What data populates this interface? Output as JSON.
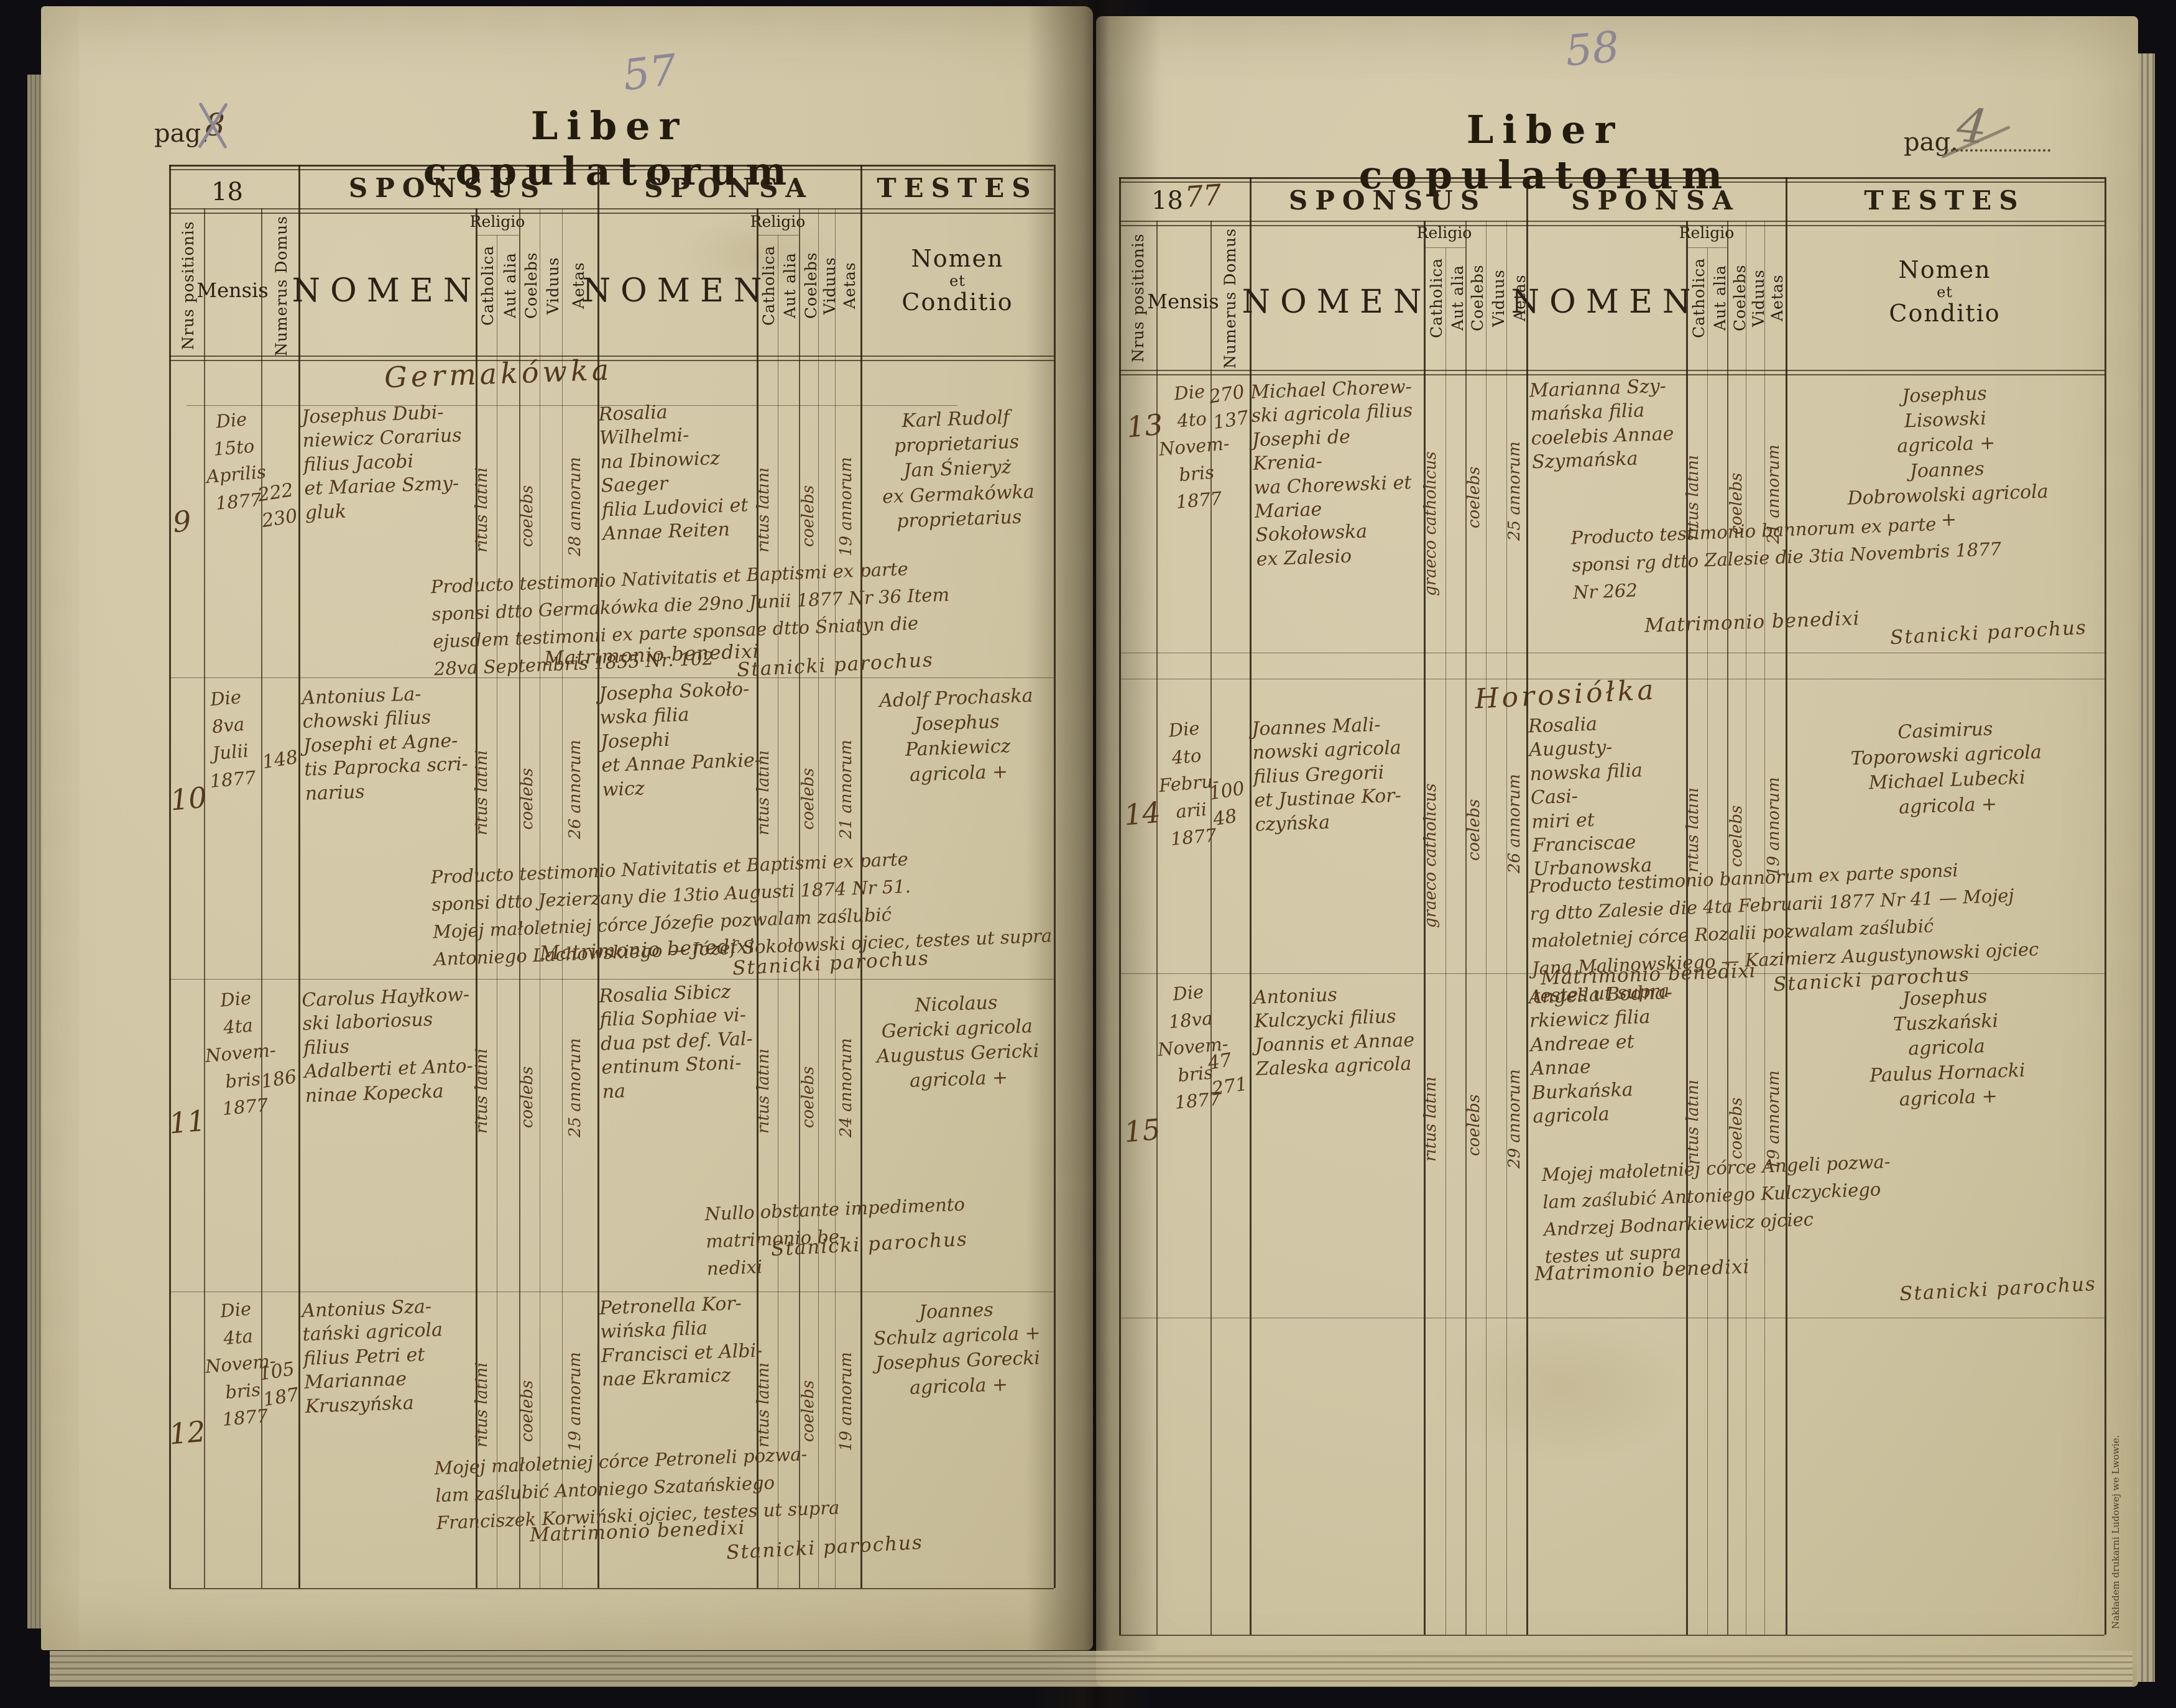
{
  "book": {
    "title": "Liber copulatorum",
    "imprint": "Nakładem drukarni Ludowej we Lwowie."
  },
  "colors": {
    "paper": "#d1c7a6",
    "ink": "#2b2114",
    "handwriting": "#54391d",
    "pencil": "#8d8796",
    "background": "#0d0d12"
  },
  "groups": {
    "sponsus": "SPONSUS",
    "sponsa": "SPONSA",
    "testes": "TESTES"
  },
  "columns": {
    "nrus": "Nrus positionis",
    "mensis": "Mensis",
    "domus": "Numerus Domus",
    "nomen": "NOMEN",
    "religio": "Religio",
    "catholica": "Catholica",
    "aut_alia": "Aut alia",
    "coelebs": "Coelebs",
    "viduus": "Viduus",
    "aetas": "Aetas",
    "testes_line1": "Nomen",
    "testes_line2": "et",
    "testes_line3": "Conditio"
  },
  "left": {
    "pag_label": "pag.",
    "pag_number": "8",
    "pencil_number": "57",
    "year_printed": "18",
    "year_written": "",
    "place_header": "Germakówka",
    "rows": [
      {
        "nr": "9",
        "mensis": "Die\n15to\nAprilis\n1877",
        "domus": "222\n230",
        "sponsus": "Josephus Dubi-\nniewicz Corarius\nfilius Jacobi\net Mariae Szmy-\ngluk",
        "sponsus_ritus": "ritus latini",
        "sponsus_status": "coelebs",
        "sponsus_aetas": "28 annorum",
        "sponsa": "Rosalia Wilhelmi-\nna Ibinowicz Saeger\nfilia Ludovici et\nAnnae Reiten",
        "sponsa_ritus": "ritus latini",
        "sponsa_status": "coelebs",
        "sponsa_aetas": "19 annorum",
        "testes": "Karl Rudolf\nproprietarius\nJan Śnieryż\nex Germakówka\nproprietarius",
        "note": "Producto testimonio Nativitatis et Baptismi ex parte\nsponsi dtto Germakówka die 29no Junii 1877 Nr 36 Item\nejusdem testimonii ex parte sponsae dtto Śniatyn die\n28va Septembris 1855 Nr. 102",
        "benedixi": "Matrimonio benedixi",
        "signature": "Stanicki parochus"
      },
      {
        "nr": "10",
        "mensis": "Die\n8va\nJulii\n1877",
        "domus": "148",
        "sponsus": "Antonius La-\nchowski filius\nJosephi et Agne-\ntis Paprocka scri-\nnarius",
        "sponsus_ritus": "ritus latini",
        "sponsus_status": "coelebs",
        "sponsus_aetas": "26 annorum",
        "sponsa": "Josepha Sokoło-\nwska filia Josephi\net Annae Pankie-\nwicz",
        "sponsa_ritus": "ritus latini",
        "sponsa_status": "coelebs",
        "sponsa_aetas": "21 annorum",
        "testes": "Adolf Prochaska\nJosephus Pankiewicz\nagricola +",
        "note": "Producto testimonio Nativitatis et Baptismi ex parte\nsponsi dtto Jezierzany die 13tio Augusti 1874 Nr 51.\nMojej małoletniej córce Józefie pozwalam zaślubić\nAntoniego Lachowskiego — Józef Sokołowski ojciec, testes ut supra",
        "benedixi": "Matrimonio benedixi",
        "signature": "Stanicki parochus"
      },
      {
        "nr": "11",
        "mensis": "Die\n4ta\nNovem-\nbris\n1877",
        "domus": "186",
        "sponsus": "Carolus Hayłkow-\nski laboriosus filius\nAdalberti et Anto-\nninae Kopecka",
        "sponsus_ritus": "ritus latini",
        "sponsus_status": "coelebs",
        "sponsus_aetas": "25 annorum",
        "sponsa": "Rosalia Sibicz\nfilia Sophiae vi-\ndua pst def. Val-\nentinum Stoni-\nna",
        "sponsa_ritus": "ritus latini",
        "sponsa_status": "coelebs",
        "sponsa_aetas": "24 annorum",
        "testes": "Nicolaus\nGericki agricola\nAugustus Gericki\nagricola +",
        "note": "Nullo obstante impedimento matrimonio be-\nnedixi",
        "benedixi": "",
        "signature": "Stanicki parochus"
      },
      {
        "nr": "12",
        "mensis": "Die\n4ta\nNovem-\nbris\n1877",
        "domus": "105\n187",
        "sponsus": "Antonius Sza-\ntański agricola\nfilius Petri et\nMariannae\nKruszyńska",
        "sponsus_ritus": "ritus latini",
        "sponsus_status": "coelebs",
        "sponsus_aetas": "19 annorum",
        "sponsa": "Petronella Kor-\nwińska filia\nFrancisci et Albi-\nnae Ekramicz",
        "sponsa_ritus": "ritus latini",
        "sponsa_status": "coelebs",
        "sponsa_aetas": "19 annorum",
        "testes": "Joannes\nSchulz agricola +\nJosephus Gorecki\nagricola +",
        "note": "Mojej małoletniej córce Petroneli pozwa-\nlam zaślubić Antoniego Szatańskiego\nFranciszek Korwiński ojciec, testes ut supra",
        "benedixi": "Matrimonio benedixi",
        "signature": "Stanicki parochus"
      }
    ]
  },
  "right": {
    "pag_label": "pag.",
    "pag_number": "4",
    "pencil_number": "58",
    "year_printed": "18",
    "year_written": "77",
    "place_header": "Horosiółka",
    "rows": [
      {
        "nr": "13",
        "mensis": "Die\n4to\nNovem-\nbris\n1877",
        "domus": "270\n137",
        "sponsus": "Michael Chorew-\nski agricola filius\nJosephi de Krenia-\nwa Chorewski et\nMariae Sokołowska\nex Zalesio",
        "sponsus_ritus": "graeco catholicus",
        "sponsus_status": "coelebs",
        "sponsus_aetas": "25 annorum",
        "sponsa": "Marianna Szy-\nmańska filia\ncoelebis Annae\nSzymańska",
        "sponsa_ritus": "ritus latini",
        "sponsa_status": "coelebs",
        "sponsa_aetas": "21 annorum",
        "testes": "Josephus\nLisowski\nagricola +\nJoannes\nDobrowolski agricola\n+",
        "note": "Producto testimonio bannorum ex parte\nsponsi rg dtto Zalesie die 3tia Novembris 1877\nNr 262",
        "benedixi": "Matrimonio benedixi",
        "signature": "Stanicki parochus"
      },
      {
        "nr": "14",
        "mensis": "Die\n4to\nFebru-\narii\n1877",
        "domus": "100\n48",
        "sponsus": "Joannes Mali-\nnowski agricola\nfilius Gregorii\net Justinae Kor-\nczyńska",
        "sponsus_ritus": "graeco catholicus",
        "sponsus_status": "coelebs",
        "sponsus_aetas": "26 annorum",
        "sponsa": "Rosalia Augusty-\nnowska filia Casi-\nmiri et Franciscae\nUrbanowska",
        "sponsa_ritus": "ritus latini",
        "sponsa_status": "coelebs",
        "sponsa_aetas": "19 annorum",
        "testes": "Casimirus\nToporowski agricola\nMichael Lubecki\nagricola +",
        "note": "Producto testimonio bannorum ex parte sponsi\nrg dtto Zalesie die 4ta Februarii 1877 Nr 41 — Mojej\nmałoletniej córce Rozalii pozwalam zaślubić\nJana Malinowskiego — Kazimierz Augustynowski ojciec\ntestes ut supra",
        "benedixi": "Matrimonio benedixi",
        "signature": "Stanicki parochus"
      },
      {
        "nr": "15",
        "mensis": "Die\n18va\nNovem-\nbris\n1877",
        "domus": "47\n271",
        "sponsus": "Antonius\nKulczycki filius\nJoannis et Annae\nZaleska agricola",
        "sponsus_ritus": "ritus latini",
        "sponsus_status": "coelebs",
        "sponsus_aetas": "29 annorum",
        "sponsa": "Angella Bodna-\nrkiewicz filia\nAndreae et Annae\nBurkańska agricola",
        "sponsa_ritus": "ritus latini",
        "sponsa_status": "coelebs",
        "sponsa_aetas": "19 annorum",
        "testes": "Josephus\nTuszkański\nagricola\nPaulus Hornacki\nagricola +",
        "note": "Mojej małoletniej córce Angeli pozwa-\nlam zaślubić Antoniego Kulczyckiego\nAndrzej Bodnarkiewicz ojciec\ntestes ut supra",
        "benedixi": "Matrimonio benedixi",
        "signature": "Stanicki parochus"
      }
    ]
  }
}
